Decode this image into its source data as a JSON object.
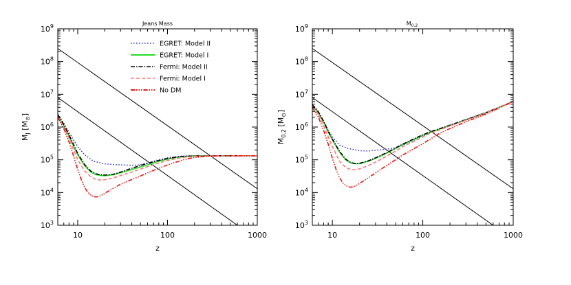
{
  "chart_data": [
    {
      "type": "line",
      "title": "Jeans Mass",
      "xlabel": "z",
      "ylabel": "M_J [M_⊙]",
      "ylabel_main": "M",
      "ylabel_sub": "J",
      "ylabel_unit": "[M",
      "ylabel_unit_sub": "⊙",
      "ylabel_close": "]",
      "xscale": "log",
      "yscale": "log",
      "xlim": [
        6,
        1000
      ],
      "ylim": [
        1000,
        1000000000
      ],
      "x_ticks": [
        {
          "value": 10,
          "label": "10"
        },
        {
          "value": 100,
          "label": "100"
        },
        {
          "value": 1000,
          "label": "1000"
        }
      ],
      "y_ticks": [
        {
          "value": 1000,
          "base": "10",
          "exp": "3"
        },
        {
          "value": 10000,
          "base": "10",
          "exp": "4"
        },
        {
          "value": 100000,
          "base": "10",
          "exp": "5"
        },
        {
          "value": 1000000,
          "base": "10",
          "exp": "6"
        },
        {
          "value": 10000000,
          "base": "10",
          "exp": "7"
        },
        {
          "value": 100000000,
          "base": "10",
          "exp": "8"
        },
        {
          "value": 1000000000,
          "base": "10",
          "exp": "9"
        }
      ],
      "legend_position": "top-center",
      "series": [
        {
          "name": "EGRET: Model II",
          "color": "#3333cc",
          "dash": "1.5,2.5",
          "x": [
            6,
            7,
            8,
            9,
            10,
            12,
            15,
            20,
            25,
            30,
            40,
            50,
            60,
            80,
            100,
            130,
            150,
            200,
            300,
            500,
            1000
          ],
          "y": [
            2500000,
            1300000,
            700000,
            400000,
            250000,
            140000,
            90000,
            75000,
            72000,
            70000,
            68000,
            70000,
            80000,
            100000,
            115000,
            125000,
            130000,
            132000,
            133000,
            133000,
            133000
          ]
        },
        {
          "name": "EGRET: Model I",
          "color": "#22dd22",
          "dash": "",
          "x": [
            6,
            7,
            8,
            9,
            10,
            12,
            14,
            16,
            18,
            20,
            25,
            30,
            40,
            50,
            60,
            80,
            100,
            130,
            150,
            200,
            300,
            500,
            1000
          ],
          "y": [
            2200000,
            1100000,
            520000,
            260000,
            140000,
            65000,
            42000,
            35000,
            33000,
            32500,
            35000,
            40000,
            50000,
            60000,
            70000,
            90000,
            105000,
            120000,
            125000,
            130000,
            133000,
            133000,
            133000
          ]
        },
        {
          "name": "Fermi: Model II",
          "color": "#000000",
          "dash": "6,2,1.5,2",
          "x": [
            6,
            7,
            8,
            9,
            10,
            12,
            14,
            16,
            18,
            20,
            25,
            30,
            40,
            50,
            60,
            80,
            100,
            130,
            150,
            200,
            300,
            500,
            1000
          ],
          "y": [
            2400000,
            1200000,
            580000,
            290000,
            155000,
            70000,
            45000,
            37000,
            35000,
            34000,
            36000,
            42000,
            55000,
            67000,
            78000,
            95000,
            110000,
            122000,
            127000,
            131000,
            133000,
            133000,
            133000
          ]
        },
        {
          "name": "Fermi: Model I",
          "color": "#ff7777",
          "dash": "5,3",
          "x": [
            6,
            7,
            8,
            9,
            10,
            12,
            14,
            16,
            18,
            20,
            25,
            30,
            40,
            50,
            60,
            80,
            100,
            130,
            150,
            200,
            300,
            500,
            1000
          ],
          "y": [
            2100000,
            1000000,
            450000,
            200000,
            100000,
            45000,
            30000,
            25000,
            24000,
            24500,
            28000,
            33000,
            42000,
            52000,
            62000,
            80000,
            95000,
            110000,
            118000,
            127000,
            132000,
            133000,
            133000
          ]
        },
        {
          "name": "No DM",
          "color": "#ee1111",
          "dash": "6,2,1.5,2,1.5,2,1.5,2",
          "x": [
            6,
            7,
            8,
            9,
            10,
            11,
            12,
            13,
            14,
            15,
            16,
            17,
            18,
            20,
            25,
            30,
            40,
            50,
            60,
            80,
            100,
            150,
            200,
            300,
            500,
            1000
          ],
          "y": [
            2000000,
            900000,
            350000,
            130000,
            50000,
            24000,
            14000,
            10000,
            8200,
            7500,
            7300,
            7500,
            8000,
            9500,
            13500,
            18000,
            25000,
            32000,
            40000,
            55000,
            70000,
            100000,
            118000,
            130000,
            133000,
            133000
          ]
        }
      ],
      "reference_lines": [
        {
          "x": [
            6,
            1000
          ],
          "y": [
            250000000,
            13000
          ]
        },
        {
          "x": [
            6,
            600
          ],
          "y": [
            8000000,
            1000
          ]
        }
      ]
    },
    {
      "type": "line",
      "title": "M_0.2",
      "title_main": "M",
      "title_sub": "0.2",
      "xlabel": "z",
      "ylabel": "M_0.2 [M_⊙]",
      "ylabel_main": "M",
      "ylabel_sub": "0.2",
      "ylabel_unit": "[M",
      "ylabel_unit_sub": "⊙",
      "ylabel_close": "]",
      "xscale": "log",
      "yscale": "log",
      "xlim": [
        6,
        1000
      ],
      "ylim": [
        1000,
        1000000000
      ],
      "x_ticks": [
        {
          "value": 10,
          "label": "10"
        },
        {
          "value": 100,
          "label": "100"
        },
        {
          "value": 1000,
          "label": "1000"
        }
      ],
      "y_ticks": [
        {
          "value": 1000,
          "base": "10",
          "exp": "3"
        },
        {
          "value": 10000,
          "base": "10",
          "exp": "4"
        },
        {
          "value": 100000,
          "base": "10",
          "exp": "5"
        },
        {
          "value": 1000000,
          "base": "10",
          "exp": "6"
        },
        {
          "value": 10000000,
          "base": "10",
          "exp": "7"
        },
        {
          "value": 100000000,
          "base": "10",
          "exp": "8"
        },
        {
          "value": 1000000000,
          "base": "10",
          "exp": "9"
        }
      ],
      "series": [
        {
          "name": "EGRET: Model II",
          "color": "#3333cc",
          "dash": "1.5,2.5",
          "x": [
            6,
            7,
            8,
            9,
            10,
            12,
            15,
            20,
            25,
            30,
            40,
            50,
            60,
            80,
            100,
            130,
            150,
            200,
            300,
            500,
            1000
          ],
          "y": [
            5000000,
            3000000,
            1500000,
            800000,
            500000,
            280000,
            220000,
            190000,
            185000,
            195000,
            210000,
            230000,
            280000,
            400000,
            520000,
            750000,
            850000,
            1150000,
            1700000,
            2800000,
            6000000
          ]
        },
        {
          "name": "EGRET: Model I",
          "color": "#22dd22",
          "dash": "",
          "x": [
            6,
            7,
            8,
            9,
            10,
            12,
            14,
            16,
            18,
            20,
            25,
            30,
            40,
            50,
            60,
            80,
            100,
            130,
            150,
            200,
            300,
            500,
            1000
          ],
          "y": [
            4500000,
            2700000,
            1400000,
            700000,
            400000,
            170000,
            100000,
            80000,
            75000,
            76000,
            90000,
            110000,
            160000,
            220000,
            290000,
            420000,
            560000,
            750000,
            850000,
            1120000,
            1650000,
            2700000,
            6000000
          ]
        },
        {
          "name": "Fermi: Model II",
          "color": "#000000",
          "dash": "6,2,1.5,2",
          "x": [
            6,
            7,
            8,
            9,
            10,
            12,
            14,
            16,
            18,
            20,
            25,
            30,
            40,
            50,
            60,
            80,
            100,
            130,
            150,
            200,
            300,
            500,
            1000
          ],
          "y": [
            4800000,
            2900000,
            1500000,
            750000,
            430000,
            180000,
            105000,
            82000,
            77000,
            78000,
            93000,
            115000,
            165000,
            230000,
            300000,
            440000,
            580000,
            770000,
            870000,
            1140000,
            1680000,
            2750000,
            6000000
          ]
        },
        {
          "name": "Fermi: Model I",
          "color": "#ff7777",
          "dash": "5,3",
          "x": [
            6,
            7,
            8,
            9,
            10,
            12,
            14,
            16,
            18,
            20,
            25,
            30,
            40,
            50,
            60,
            80,
            100,
            130,
            150,
            200,
            300,
            500,
            1000
          ],
          "y": [
            4200000,
            2400000,
            1100000,
            500000,
            250000,
            90000,
            58000,
            50000,
            50000,
            53000,
            67000,
            85000,
            130000,
            185000,
            250000,
            370000,
            500000,
            700000,
            800000,
            1080000,
            1620000,
            2700000,
            6000000
          ]
        },
        {
          "name": "No DM",
          "color": "#ee1111",
          "dash": "6,2,1.5,2,1.5,2,1.5,2",
          "x": [
            6,
            7,
            8,
            9,
            10,
            11,
            12,
            13,
            14,
            15,
            16,
            17,
            18,
            20,
            25,
            30,
            40,
            50,
            60,
            80,
            100,
            150,
            200,
            300,
            500,
            1000
          ],
          "y": [
            4000000,
            2000000,
            800000,
            300000,
            110000,
            50000,
            28000,
            20000,
            16500,
            15000,
            14500,
            15000,
            16000,
            19000,
            28000,
            40000,
            68000,
            100000,
            140000,
            220000,
            310000,
            620000,
            900000,
            1450000,
            2500000,
            6000000
          ]
        }
      ],
      "reference_lines": [
        {
          "x": [
            6,
            1000
          ],
          "y": [
            250000000,
            13000
          ]
        },
        {
          "x": [
            6,
            600
          ],
          "y": [
            8000000,
            1000
          ]
        }
      ]
    }
  ]
}
